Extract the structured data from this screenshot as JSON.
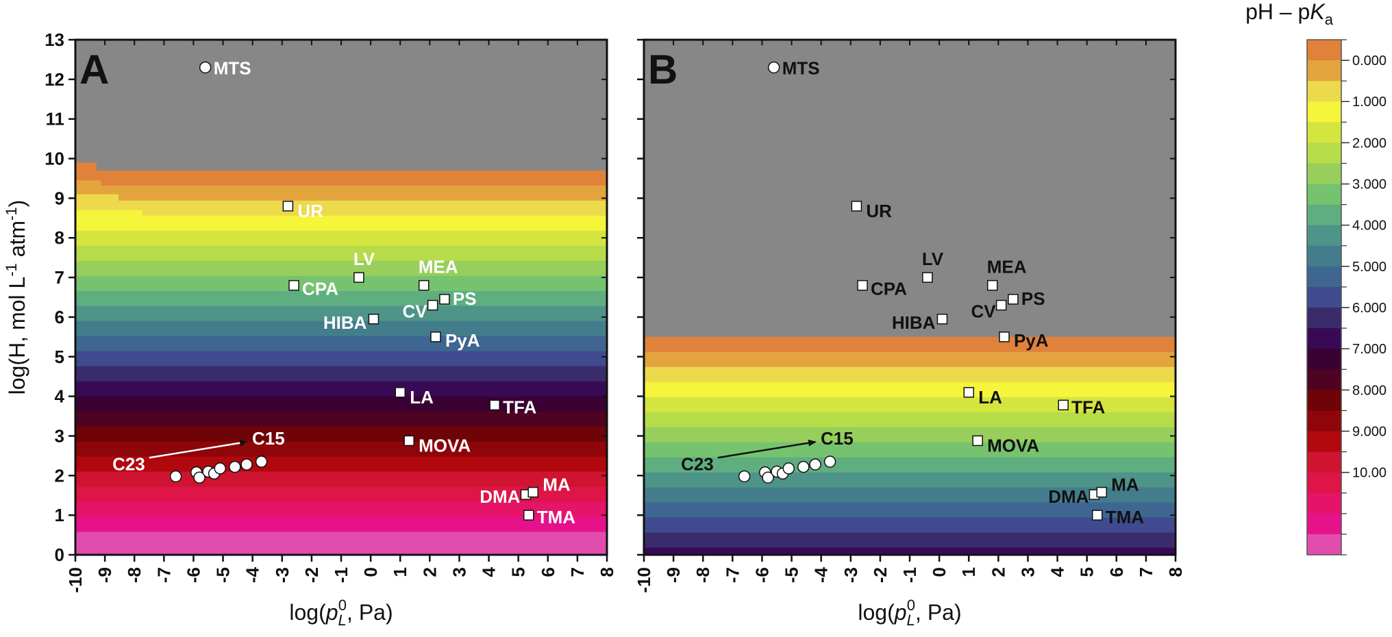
{
  "chart_data": {
    "type": "scatter",
    "xlim": [
      -10,
      8
    ],
    "ylim": [
      0,
      13
    ],
    "x_ticks": [
      -10,
      -9,
      -8,
      -7,
      -6,
      -5,
      -4,
      -3,
      -2,
      -1,
      0,
      1,
      2,
      3,
      4,
      5,
      6,
      7,
      8
    ],
    "y_ticks": [
      0,
      1,
      2,
      3,
      4,
      5,
      6,
      7,
      8,
      9,
      10,
      11,
      12,
      13
    ],
    "colorbar": {
      "title": "pH – pKa",
      "tick_labels": [
        "0.000",
        "1.000",
        "2.000",
        "3.000",
        "4.000",
        "5.000",
        "6.000",
        "7.000",
        "8.000",
        "9.000",
        "10.00"
      ],
      "colors": [
        "#E0823A",
        "#E3A43D",
        "#ECD94C",
        "#F5F53B",
        "#D5E53F",
        "#B7DC4A",
        "#97CE5C",
        "#76C36F",
        "#5FAE80",
        "#4E9488",
        "#437D8C",
        "#3F6691",
        "#3F4B8E",
        "#3A2C6A",
        "#380A56",
        "#3A0233",
        "#4E0322",
        "#6E0308",
        "#8E050A",
        "#B1080E",
        "#CE1430",
        "#DF1447",
        "#E61468",
        "#E5128C",
        "#E14CAD"
      ]
    },
    "gray_color": "#878787",
    "points": [
      {
        "label": "MTS",
        "x": -5.6,
        "y": 12.3,
        "marker": "circle"
      },
      {
        "label": "UR",
        "x": -2.8,
        "y": 8.8,
        "marker": "square"
      },
      {
        "label": "LV",
        "x": -0.4,
        "y": 7.0,
        "marker": "square"
      },
      {
        "label": "CPA",
        "x": -2.6,
        "y": 6.8,
        "marker": "square"
      },
      {
        "label": "MEA",
        "x": 1.8,
        "y": 6.8,
        "marker": "square"
      },
      {
        "label": "PS",
        "x": 2.5,
        "y": 6.45,
        "marker": "square"
      },
      {
        "label": "CV",
        "x": 2.1,
        "y": 6.3,
        "marker": "square"
      },
      {
        "label": "HIBA",
        "x": 0.1,
        "y": 5.95,
        "marker": "square"
      },
      {
        "label": "PyA",
        "x": 2.2,
        "y": 5.5,
        "marker": "square"
      },
      {
        "label": "LA",
        "x": 1.0,
        "y": 4.1,
        "marker": "square"
      },
      {
        "label": "TFA",
        "x": 4.2,
        "y": 3.78,
        "marker": "square"
      },
      {
        "label": "MOVA",
        "x": 1.3,
        "y": 2.88,
        "marker": "square"
      },
      {
        "label": "DMA",
        "x": 5.25,
        "y": 1.52,
        "marker": "square"
      },
      {
        "label": "MA",
        "x": 5.5,
        "y": 1.58,
        "marker": "square"
      },
      {
        "label": "TMA",
        "x": 5.35,
        "y": 1.0,
        "marker": "square"
      }
    ],
    "cluster": [
      {
        "x": -6.6,
        "y": 1.98
      },
      {
        "x": -5.9,
        "y": 2.08
      },
      {
        "x": -5.8,
        "y": 1.95
      },
      {
        "x": -5.5,
        "y": 2.1
      },
      {
        "x": -5.3,
        "y": 2.05
      },
      {
        "x": -5.1,
        "y": 2.18
      },
      {
        "x": -4.6,
        "y": 2.22
      },
      {
        "x": -4.2,
        "y": 2.28
      },
      {
        "x": -3.7,
        "y": 2.35
      }
    ],
    "arrow": {
      "from": [
        -7.5,
        2.45
      ],
      "to": [
        -4.2,
        2.85
      ],
      "labels": [
        "C23",
        "C15"
      ]
    },
    "panels": [
      {
        "letter": "A",
        "xlabel": "log(pL0, Pa)",
        "ylabel": "log(H, mol L-1 atm-1)",
        "bands": {
          "top": 9.7,
          "step": 0.38,
          "start_index": 0,
          "left_jags": [
            {
              "x": -9.75,
              "y": 9.9
            },
            {
              "x": -9.6,
              "y": 9.45
            },
            {
              "x": -9.0,
              "y": 9.1
            },
            {
              "x": -8.2,
              "y": 8.7
            }
          ]
        }
      },
      {
        "letter": "B",
        "xlabel": "log(pL0, Pa)",
        "ylabel": "",
        "bands": {
          "top": 5.5,
          "step": 0.38,
          "start_index": 0,
          "left_jags": []
        }
      }
    ],
    "label_colors": {
      "A": "#ffffff",
      "B": "#111111"
    }
  }
}
